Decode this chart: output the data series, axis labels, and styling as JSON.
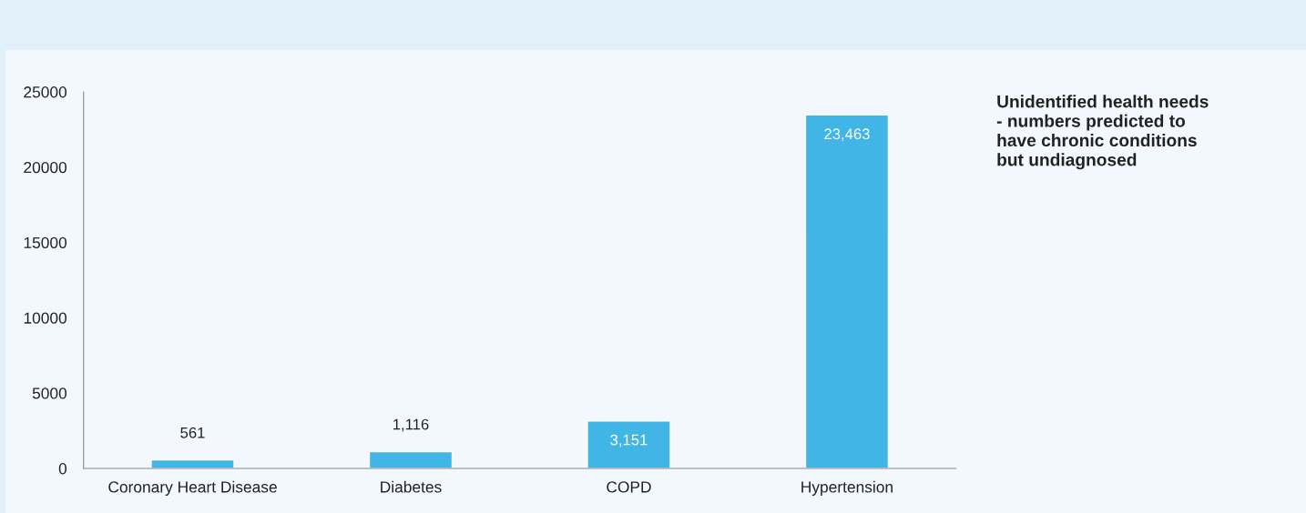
{
  "chart_data": {
    "type": "bar",
    "title": "Unidentified health needs\n- numbers predicted to\nhave chronic conditions\nbut undiagnosed",
    "categories": [
      "Coronary Heart Disease",
      "Diabetes",
      "COPD",
      "Hypertension"
    ],
    "values": [
      561,
      1116,
      3151,
      23463
    ],
    "color": "#41b6e6",
    "ylim": [
      0,
      25000
    ],
    "yticks": [
      0,
      5000,
      10000,
      15000,
      20000,
      25000
    ],
    "grid": false,
    "data_labels": true,
    "value_labels": [
      "561",
      "1,116",
      "3,151",
      "23,463"
    ]
  }
}
